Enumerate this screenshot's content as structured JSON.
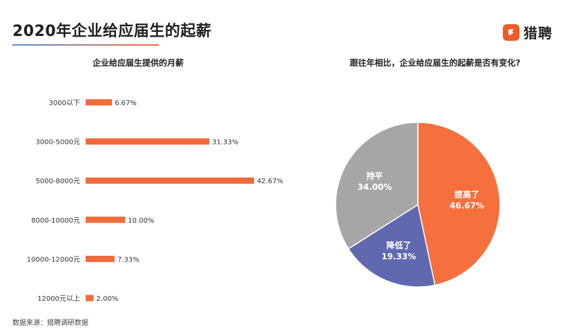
{
  "header": {
    "title": "2020年企业给应届生的起薪",
    "brand_name": "猎聘",
    "brand_color": "#f05a28"
  },
  "footer": {
    "source": "数据来源：猎聘调研数据"
  },
  "chart_data": [
    {
      "type": "bar",
      "orientation": "horizontal",
      "title": "企业给应届生提供的月薪",
      "categories": [
        "3000以下",
        "3000-5000元",
        "5000-8000元",
        "8000-10000元",
        "10000-12000元",
        "12000元以上"
      ],
      "values": [
        6.67,
        31.33,
        42.67,
        10.0,
        7.33,
        2.0
      ],
      "value_labels": [
        "6.67%",
        "31.33%",
        "42.67%",
        "10.00%",
        "7.33%",
        "2.00%"
      ],
      "unit": "%",
      "color": "#f06a3b",
      "grid": false
    },
    {
      "type": "pie",
      "title": "跟往年相比，企业给应届生的起薪是否有变化?",
      "slices": [
        {
          "label": "提高了",
          "value": 46.67,
          "value_label": "46.67%",
          "color": "#f5703d"
        },
        {
          "label": "降低了",
          "value": 19.33,
          "value_label": "19.33%",
          "color": "#6068b0"
        },
        {
          "label": "持平",
          "value": 34.0,
          "value_label": "34.00%",
          "color": "#a6a6a6"
        }
      ]
    }
  ]
}
